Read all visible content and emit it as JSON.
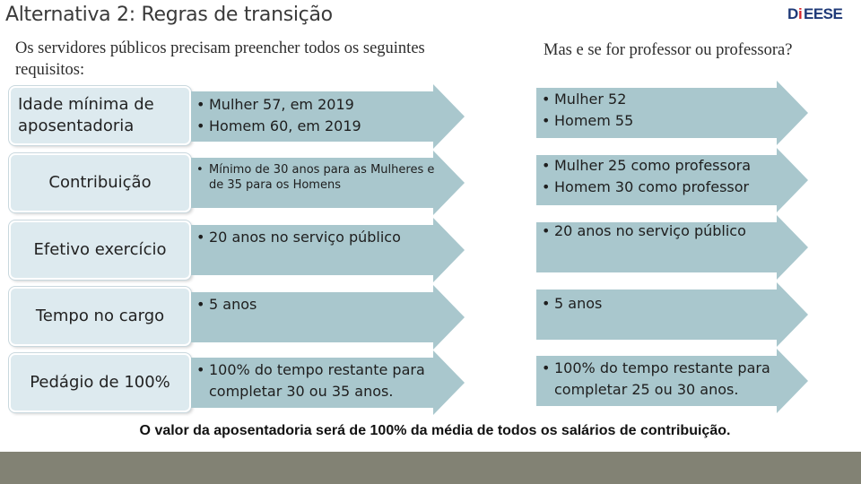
{
  "header": {
    "title": "Alternativa 2: Regras de transição",
    "logo_text": "DIEESE"
  },
  "subtitles": {
    "left": "Os servidores públicos precisam preencher todos os seguintes requisitos:",
    "right": "Mas e se for professor ou professora?"
  },
  "rows": [
    {
      "label": "Idade mínima de aposentadoria",
      "left": [
        "Mulher 57, em 2019",
        "Homem 60, em 2019"
      ],
      "right": [
        "Mulher 52",
        "Homem 55"
      ]
    },
    {
      "label": "Contribuição",
      "left": [
        "Mínimo de 30 anos para as Mulheres e de 35 para os Homens"
      ],
      "right": [
        "Mulher 25 como professora",
        "Homem 30 como professor"
      ]
    },
    {
      "label": "Efetivo exercício",
      "left": [
        "20 anos no serviço público"
      ],
      "right": [
        "20 anos no serviço público"
      ]
    },
    {
      "label": "Tempo no cargo",
      "left": [
        "5 anos"
      ],
      "right": [
        "5 anos"
      ]
    },
    {
      "label": "Pedágio de 100%",
      "left": [
        "100% do tempo restante para completar 30 ou 35 anos."
      ],
      "right": [
        "100% do tempo restante para completar 25 ou 30 anos."
      ]
    }
  ],
  "footer": "O valor da aposentadoria será de 100% da média de todos os salários de contribuição.",
  "colors": {
    "arrow_fill": "#a9c7cd",
    "label_fill": "#ddeaef",
    "bottom_bar": "#828274",
    "logo_blue": "#1f3a78",
    "logo_red": "#d6262b"
  }
}
